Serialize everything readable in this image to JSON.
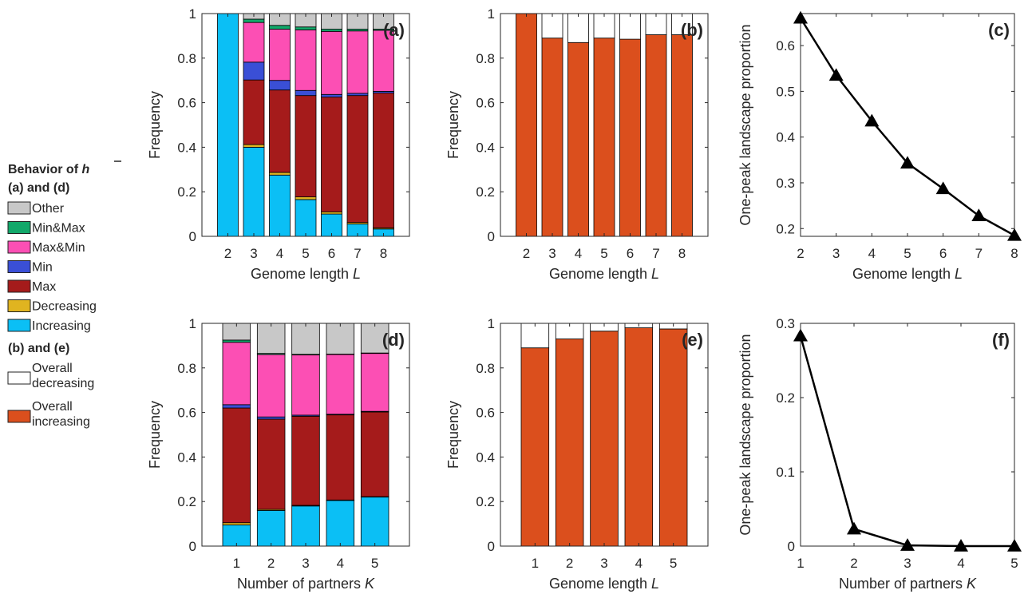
{
  "colors": {
    "Other": "#c8c8c8",
    "Min&Max": "#12a86a",
    "Max&Min": "#fc4fb4",
    "Min": "#3a4fd6",
    "Max": "#a51b1b",
    "Decreasing": "#e0b420",
    "Increasing": "#0bbff5",
    "Overall decreasing": "#ffffff",
    "Overall increasing": "#db4f1d"
  },
  "legend": {
    "title_prefix": "Behavior of",
    "title_symbol": "h",
    "group1_label": "(a) and (d)",
    "group1_items": [
      "Other",
      "Min&Max",
      "Max&Min",
      "Min",
      "Max",
      "Decreasing",
      "Increasing"
    ],
    "group2_label": "(b) and (e)",
    "group2_items": [
      {
        "key": "Overall decreasing",
        "line1": "Overall",
        "line2": "decreasing"
      },
      {
        "key": "Overall increasing",
        "line1": "Overall",
        "line2": "increasing"
      }
    ]
  },
  "chart_data": [
    {
      "id": "a",
      "panel_label": "(a)",
      "type": "bar",
      "stacked": true,
      "xlabel": "Genome length",
      "xlabel_var": "L",
      "ylabel": "Frequency",
      "ylim": [
        0,
        1
      ],
      "yticks": [
        0,
        0.2,
        0.4,
        0.6,
        0.8,
        1
      ],
      "ytick_labels": [
        "0",
        "0.2",
        "0.4",
        "0.6",
        "0.8",
        "1"
      ],
      "categories": [
        "2",
        "3",
        "4",
        "5",
        "6",
        "7",
        "8"
      ],
      "series": [
        {
          "name": "Increasing",
          "values": [
            1.0,
            0.4,
            0.275,
            0.165,
            0.1,
            0.055,
            0.033
          ]
        },
        {
          "name": "Decreasing",
          "values": [
            0,
            0.012,
            0.012,
            0.012,
            0.01,
            0.007,
            0.005
          ]
        },
        {
          "name": "Max",
          "values": [
            0,
            0.29,
            0.37,
            0.455,
            0.515,
            0.57,
            0.605
          ]
        },
        {
          "name": "Min",
          "values": [
            0,
            0.08,
            0.043,
            0.023,
            0.012,
            0.01,
            0.008
          ]
        },
        {
          "name": "Max&Min",
          "values": [
            0,
            0.178,
            0.23,
            0.272,
            0.283,
            0.28,
            0.274
          ]
        },
        {
          "name": "Min&Max",
          "values": [
            0,
            0.015,
            0.017,
            0.013,
            0.01,
            0.008,
            0.005
          ]
        },
        {
          "name": "Other",
          "values": [
            0,
            0.025,
            0.053,
            0.06,
            0.07,
            0.07,
            0.07
          ]
        }
      ]
    },
    {
      "id": "b",
      "panel_label": "(b)",
      "type": "bar",
      "stacked": true,
      "xlabel": "Genome length",
      "xlabel_var": "L",
      "ylabel": "Frequency",
      "ylim": [
        0,
        1
      ],
      "yticks": [
        0,
        0.2,
        0.4,
        0.6,
        0.8,
        1
      ],
      "ytick_labels": [
        "0",
        "0.2",
        "0.4",
        "0.6",
        "0.8",
        "1"
      ],
      "categories": [
        "2",
        "3",
        "4",
        "5",
        "6",
        "7",
        "8"
      ],
      "series": [
        {
          "name": "Overall increasing",
          "values": [
            1.0,
            0.89,
            0.87,
            0.89,
            0.885,
            0.905,
            0.905
          ]
        },
        {
          "name": "Overall decreasing",
          "values": [
            0,
            0.11,
            0.13,
            0.11,
            0.115,
            0.095,
            0.095
          ]
        }
      ]
    },
    {
      "id": "c",
      "panel_label": "(c)",
      "type": "line",
      "xlabel": "Genome length",
      "xlabel_var": "L",
      "ylabel": "One-peak landscape proportion",
      "xlim": [
        2,
        8
      ],
      "ylim": [
        0.183,
        0.67
      ],
      "xticks": [
        2,
        3,
        4,
        5,
        6,
        7,
        8
      ],
      "yticks": [
        0.2,
        0.3,
        0.4,
        0.5,
        0.6
      ],
      "ytick_labels": [
        "0.2",
        "0.3",
        "0.4",
        "0.5",
        "0.6"
      ],
      "x": [
        2,
        3,
        4,
        5,
        6,
        7,
        8
      ],
      "y": [
        0.66,
        0.535,
        0.435,
        0.343,
        0.287,
        0.228,
        0.185
      ]
    },
    {
      "id": "d",
      "panel_label": "(d)",
      "type": "bar",
      "stacked": true,
      "xlabel": "Number of partners",
      "xlabel_var": "K",
      "ylabel": "Frequency",
      "ylim": [
        0,
        1
      ],
      "yticks": [
        0,
        0.2,
        0.4,
        0.6,
        0.8,
        1
      ],
      "ytick_labels": [
        "0",
        "0.2",
        "0.4",
        "0.6",
        "0.8",
        "1"
      ],
      "categories": [
        "1",
        "2",
        "3",
        "4",
        "5"
      ],
      "series": [
        {
          "name": "Increasing",
          "values": [
            0.095,
            0.16,
            0.18,
            0.205,
            0.22
          ]
        },
        {
          "name": "Decreasing",
          "values": [
            0.01,
            0.005,
            0.003,
            0.002,
            0.002
          ]
        },
        {
          "name": "Max",
          "values": [
            0.515,
            0.405,
            0.4,
            0.382,
            0.38
          ]
        },
        {
          "name": "Min",
          "values": [
            0.015,
            0.01,
            0.005,
            0.003,
            0.003
          ]
        },
        {
          "name": "Max&Min",
          "values": [
            0.28,
            0.28,
            0.27,
            0.268,
            0.26
          ]
        },
        {
          "name": "Min&Max",
          "values": [
            0.01,
            0.005,
            0.003,
            0.002,
            0.002
          ]
        },
        {
          "name": "Other",
          "values": [
            0.075,
            0.135,
            0.139,
            0.138,
            0.133
          ]
        }
      ]
    },
    {
      "id": "e",
      "panel_label": "(e)",
      "type": "bar",
      "stacked": true,
      "xlabel": "Genome length",
      "xlabel_var": "L",
      "ylabel": "Frequency",
      "ylim": [
        0,
        1
      ],
      "yticks": [
        0,
        0.2,
        0.4,
        0.6,
        0.8,
        1
      ],
      "ytick_labels": [
        "0",
        "0.2",
        "0.4",
        "0.6",
        "0.8",
        "1"
      ],
      "categories": [
        "1",
        "2",
        "3",
        "4",
        "5"
      ],
      "series": [
        {
          "name": "Overall increasing",
          "values": [
            0.89,
            0.93,
            0.965,
            0.98,
            0.975
          ]
        },
        {
          "name": "Overall decreasing",
          "values": [
            0.11,
            0.07,
            0.035,
            0.02,
            0.025
          ]
        }
      ]
    },
    {
      "id": "f",
      "panel_label": "(f)",
      "type": "line",
      "xlabel": "Number of partners",
      "xlabel_var": "K",
      "ylabel": "One-peak landscape proportion",
      "xlim": [
        1,
        5
      ],
      "ylim": [
        0,
        0.3
      ],
      "xticks": [
        1,
        2,
        3,
        4,
        5
      ],
      "yticks": [
        0,
        0.1,
        0.2,
        0.3
      ],
      "ytick_labels": [
        "0",
        "0.1",
        "0.2",
        "0.3"
      ],
      "x": [
        1,
        2,
        3,
        4,
        5
      ],
      "y": [
        0.283,
        0.023,
        0.001,
        0.0,
        0.0
      ]
    }
  ]
}
